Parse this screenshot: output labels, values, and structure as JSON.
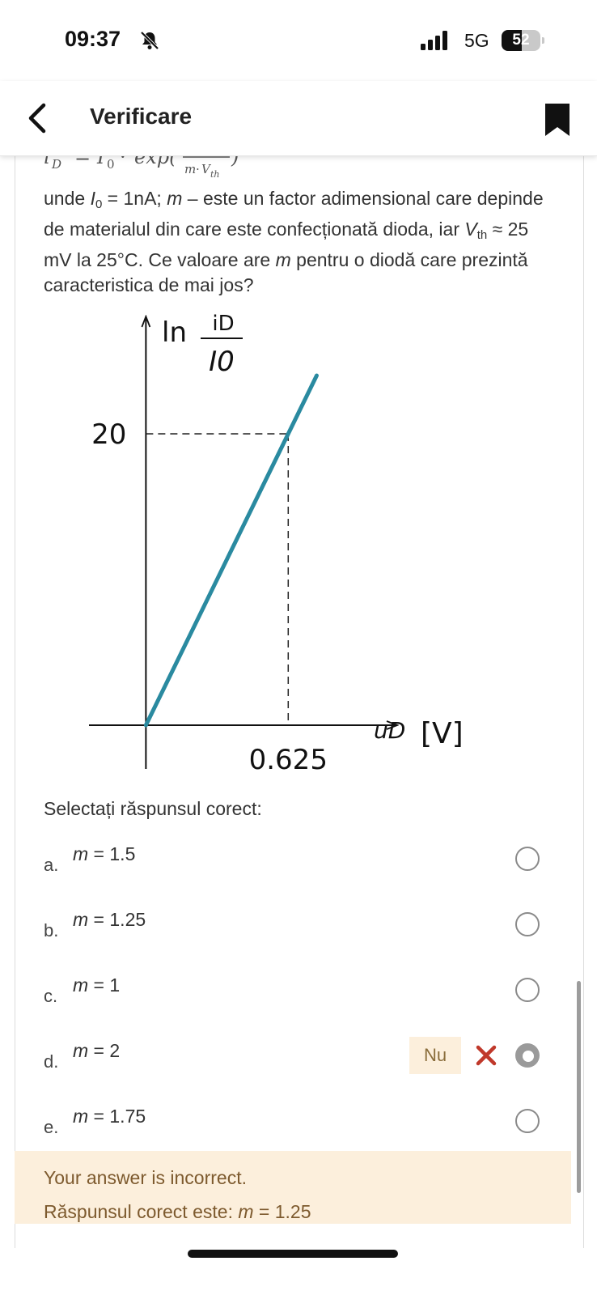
{
  "status_bar": {
    "time": "09:37",
    "network": "5G",
    "battery_level": "52",
    "battery_fraction": 0.52
  },
  "nav": {
    "title": "Verificare"
  },
  "question": {
    "formula": {
      "lhs": "i",
      "lhs_sub": "D",
      "eq": "=",
      "i0": "I",
      "i0_sub": "0",
      "dot": "·",
      "exp": "exp(",
      "den_m": "m",
      "den_dot": "·",
      "den_v": "V",
      "den_v_sub": "th",
      "close": ")"
    },
    "text": {
      "t1": "unde ",
      "i0_var": "I",
      "i0_sub": "0",
      "t2": " = 1nA; ",
      "m_var": "m",
      "t3": " – este un factor adimensional care depinde de materialul din care este confecționată dioda, iar ",
      "vth_var": "V",
      "vth_sub": "th",
      "t4": " ≈ 25 mV la 25°C.  Ce valoare are ",
      "m_var2": "m",
      "t5": " pentru o diodă care prezintă caracteristica de mai jos?"
    }
  },
  "chart_data": {
    "type": "line",
    "title": "",
    "ylabel": "ln iD/I0",
    "xlabel": "uD [V]",
    "y_axis_label": {
      "prefix": "ln",
      "numerator": "iD",
      "denominator": "I0"
    },
    "x_axis_label": {
      "var": "uD",
      "unit": "[V]"
    },
    "x_ticks": [
      "0.625"
    ],
    "y_ticks": [
      "20"
    ],
    "series": [
      {
        "x": [
          0,
          0.625,
          0.75
        ],
        "y": [
          0,
          20,
          24
        ]
      }
    ],
    "marked_point": {
      "x": 0.625,
      "y": 20
    },
    "xlim": [
      -0.25,
      1.1
    ],
    "ylim": [
      -3,
      28
    ],
    "grid": false,
    "line_color": "#2a8aa0"
  },
  "prompt": "Selectați răspunsul corect:",
  "options": [
    {
      "letter": "a.",
      "var": "m",
      "value": " = 1.5"
    },
    {
      "letter": "b.",
      "var": "m",
      "value": " = 1.25"
    },
    {
      "letter": "c.",
      "var": "m",
      "value": " = 1"
    },
    {
      "letter": "d.",
      "var": "m",
      "value": " = 2",
      "selected": true,
      "feedback": "Nu"
    },
    {
      "letter": "e.",
      "var": "m",
      "value": " = 1.75"
    }
  ],
  "result": {
    "status": "Your answer is incorrect.",
    "correct_prefix": "Răspunsul corect este: ",
    "correct_var": "m",
    "correct_value": " = 1.25"
  },
  "colors": {
    "feedback_bg": "#fcefdc",
    "feedback_text": "#7d5a2e",
    "wrong_icon": "#c0392b",
    "graph_line": "#2a8aa0"
  }
}
